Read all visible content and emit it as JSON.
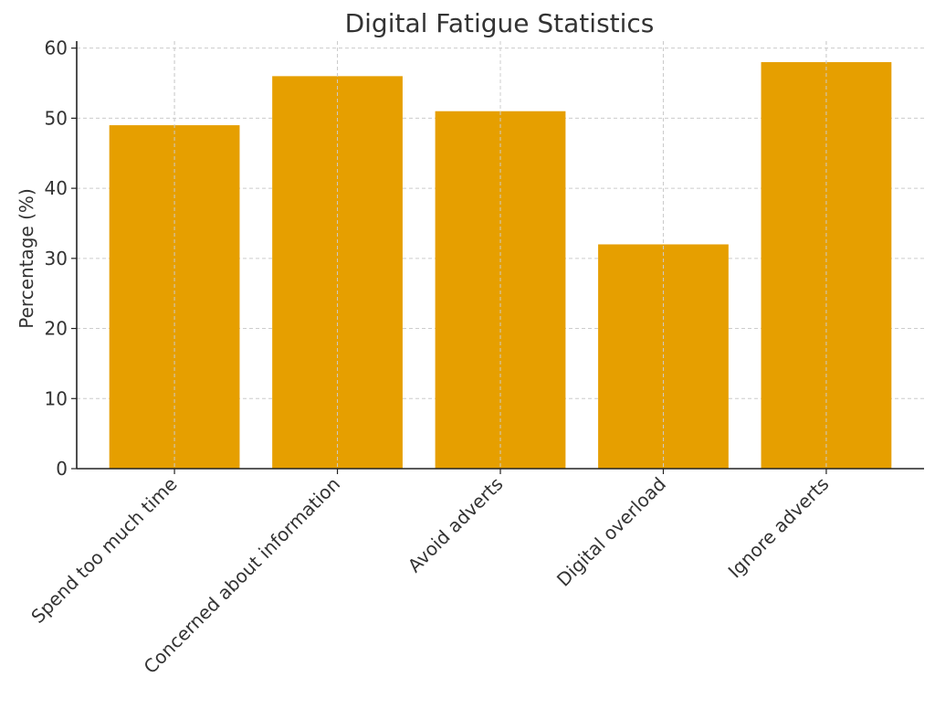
{
  "chart_data": {
    "type": "bar",
    "title": "Digital Fatigue Statistics",
    "xlabel": "",
    "ylabel": "Percentage (%)",
    "categories": [
      "Spend too much time",
      "Concerned about information",
      "Avoid adverts",
      "Digital overload",
      "Ignore adverts"
    ],
    "values": [
      49,
      56,
      51,
      32,
      58
    ],
    "ylim": [
      0,
      61
    ],
    "yticks": [
      0,
      10,
      20,
      30,
      40,
      50,
      60
    ],
    "grid": true,
    "bar_color": "#E69F00"
  }
}
